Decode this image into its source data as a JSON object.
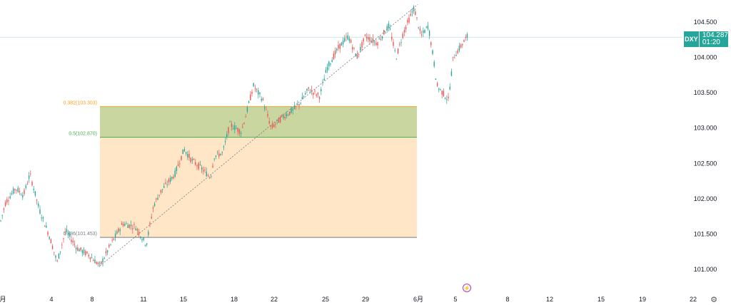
{
  "chart_data": {
    "type": "candlestick",
    "symbol": "DXY",
    "last_price": "104.287",
    "countdown": "01:20",
    "y_axis": {
      "range": [
        100.8,
        104.85
      ],
      "ticks": [
        "104.500",
        "104.000",
        "103.500",
        "103.000",
        "102.500",
        "102.000",
        "101.500",
        "101.000"
      ]
    },
    "x_axis": {
      "ticks": [
        "月",
        "4",
        "8",
        "11",
        "15",
        "18",
        "22",
        "25",
        "29",
        "6月",
        "5",
        "8",
        "12",
        "15",
        "19",
        "22"
      ]
    },
    "price_path": [
      [
        0,
        101.65
      ],
      [
        8,
        101.95
      ],
      [
        22,
        102.15
      ],
      [
        33,
        102.05
      ],
      [
        42,
        102.35
      ],
      [
        55,
        101.85
      ],
      [
        70,
        101.45
      ],
      [
        80,
        101.1
      ],
      [
        92,
        101.55
      ],
      [
        108,
        101.3
      ],
      [
        125,
        101.2
      ],
      [
        140,
        101.05
      ],
      [
        155,
        101.35
      ],
      [
        172,
        101.65
      ],
      [
        190,
        101.6
      ],
      [
        205,
        101.35
      ],
      [
        215,
        101.9
      ],
      [
        225,
        102.1
      ],
      [
        245,
        102.35
      ],
      [
        258,
        102.7
      ],
      [
        268,
        102.55
      ],
      [
        280,
        102.45
      ],
      [
        295,
        102.3
      ],
      [
        300,
        102.6
      ],
      [
        312,
        102.65
      ],
      [
        322,
        103.05
      ],
      [
        338,
        102.95
      ],
      [
        345,
        103.2
      ],
      [
        355,
        103.6
      ],
      [
        368,
        103.4
      ],
      [
        380,
        103.0
      ],
      [
        395,
        103.15
      ],
      [
        410,
        103.25
      ],
      [
        420,
        103.35
      ],
      [
        432,
        103.55
      ],
      [
        448,
        103.45
      ],
      [
        458,
        103.85
      ],
      [
        475,
        104.15
      ],
      [
        488,
        104.3
      ],
      [
        500,
        104.0
      ],
      [
        512,
        104.3
      ],
      [
        528,
        104.2
      ],
      [
        545,
        104.45
      ],
      [
        555,
        104.0
      ],
      [
        565,
        104.35
      ],
      [
        580,
        104.7
      ],
      [
        590,
        104.3
      ],
      [
        600,
        104.45
      ],
      [
        607,
        104.0
      ],
      [
        612,
        103.6
      ],
      [
        620,
        103.5
      ],
      [
        628,
        103.4
      ],
      [
        635,
        104.0
      ],
      [
        645,
        104.15
      ],
      [
        655,
        104.3
      ]
    ],
    "fib_levels": [
      {
        "label": "0.382(103.303)",
        "value": 103.303,
        "color": "#f7a21b"
      },
      {
        "label": "0.5(102.870)",
        "value": 102.87,
        "color": "#4caf50"
      },
      {
        "label": "0.886(101.453)",
        "value": 101.453,
        "color": "#787b86"
      }
    ],
    "trend_line": {
      "from": [
        140,
        101.05
      ],
      "to": [
        585,
        104.75
      ]
    },
    "zones": [
      {
        "from": 103.303,
        "to": 102.87,
        "color": "#c9d6a0"
      },
      {
        "from": 102.87,
        "to": 101.453,
        "color": "#ffe6c7"
      }
    ],
    "colors": {
      "up": "#26a69a",
      "down": "#ef5350",
      "price_line": "#26a69a"
    }
  }
}
